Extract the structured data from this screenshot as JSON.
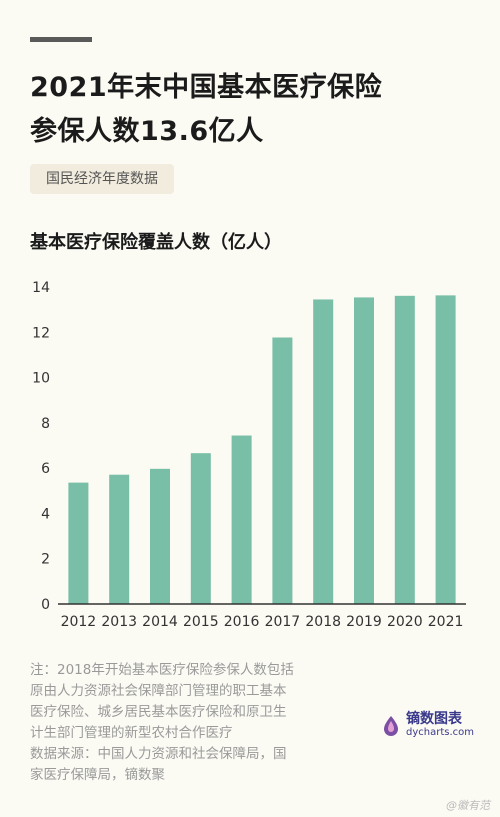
{
  "header": {
    "title_line1": "2021年末中国基本医疗保险",
    "title_line2": "参保人数13.6亿人",
    "tag": "国民经济年度数据",
    "subtitle": "基本医疗保险覆盖人数（亿人）"
  },
  "notes": {
    "line1": "注：2018年开始基本医疗保险参保人数包括",
    "line2": "原由人力资源社会保障部门管理的职工基本",
    "line3": "医疗保险、城乡居民基本医疗保险和原卫生",
    "line4": "计生部门管理的新型农村合作医疗",
    "line5": "数据来源：中国人力资源和社会保障局，国",
    "line6": "家医疗保障局，镝数聚"
  },
  "logo": {
    "name": "镝数图表",
    "url": "dycharts.com"
  },
  "watermark": "@徽有范",
  "colors": {
    "bar": "#79bfa8",
    "axis": "#333333",
    "background": "#fbfaf3"
  },
  "chart_data": {
    "type": "bar",
    "categories": [
      "2012",
      "2013",
      "2014",
      "2015",
      "2016",
      "2017",
      "2018",
      "2019",
      "2020",
      "2021"
    ],
    "values": [
      5.36,
      5.71,
      5.97,
      6.66,
      7.44,
      11.77,
      13.45,
      13.54,
      13.61,
      13.63
    ],
    "title": "基本医疗保险覆盖人数（亿人）",
    "ylim": [
      0,
      14
    ],
    "yticks": [
      0,
      2,
      4,
      6,
      8,
      10,
      12,
      14
    ],
    "grid": false
  }
}
